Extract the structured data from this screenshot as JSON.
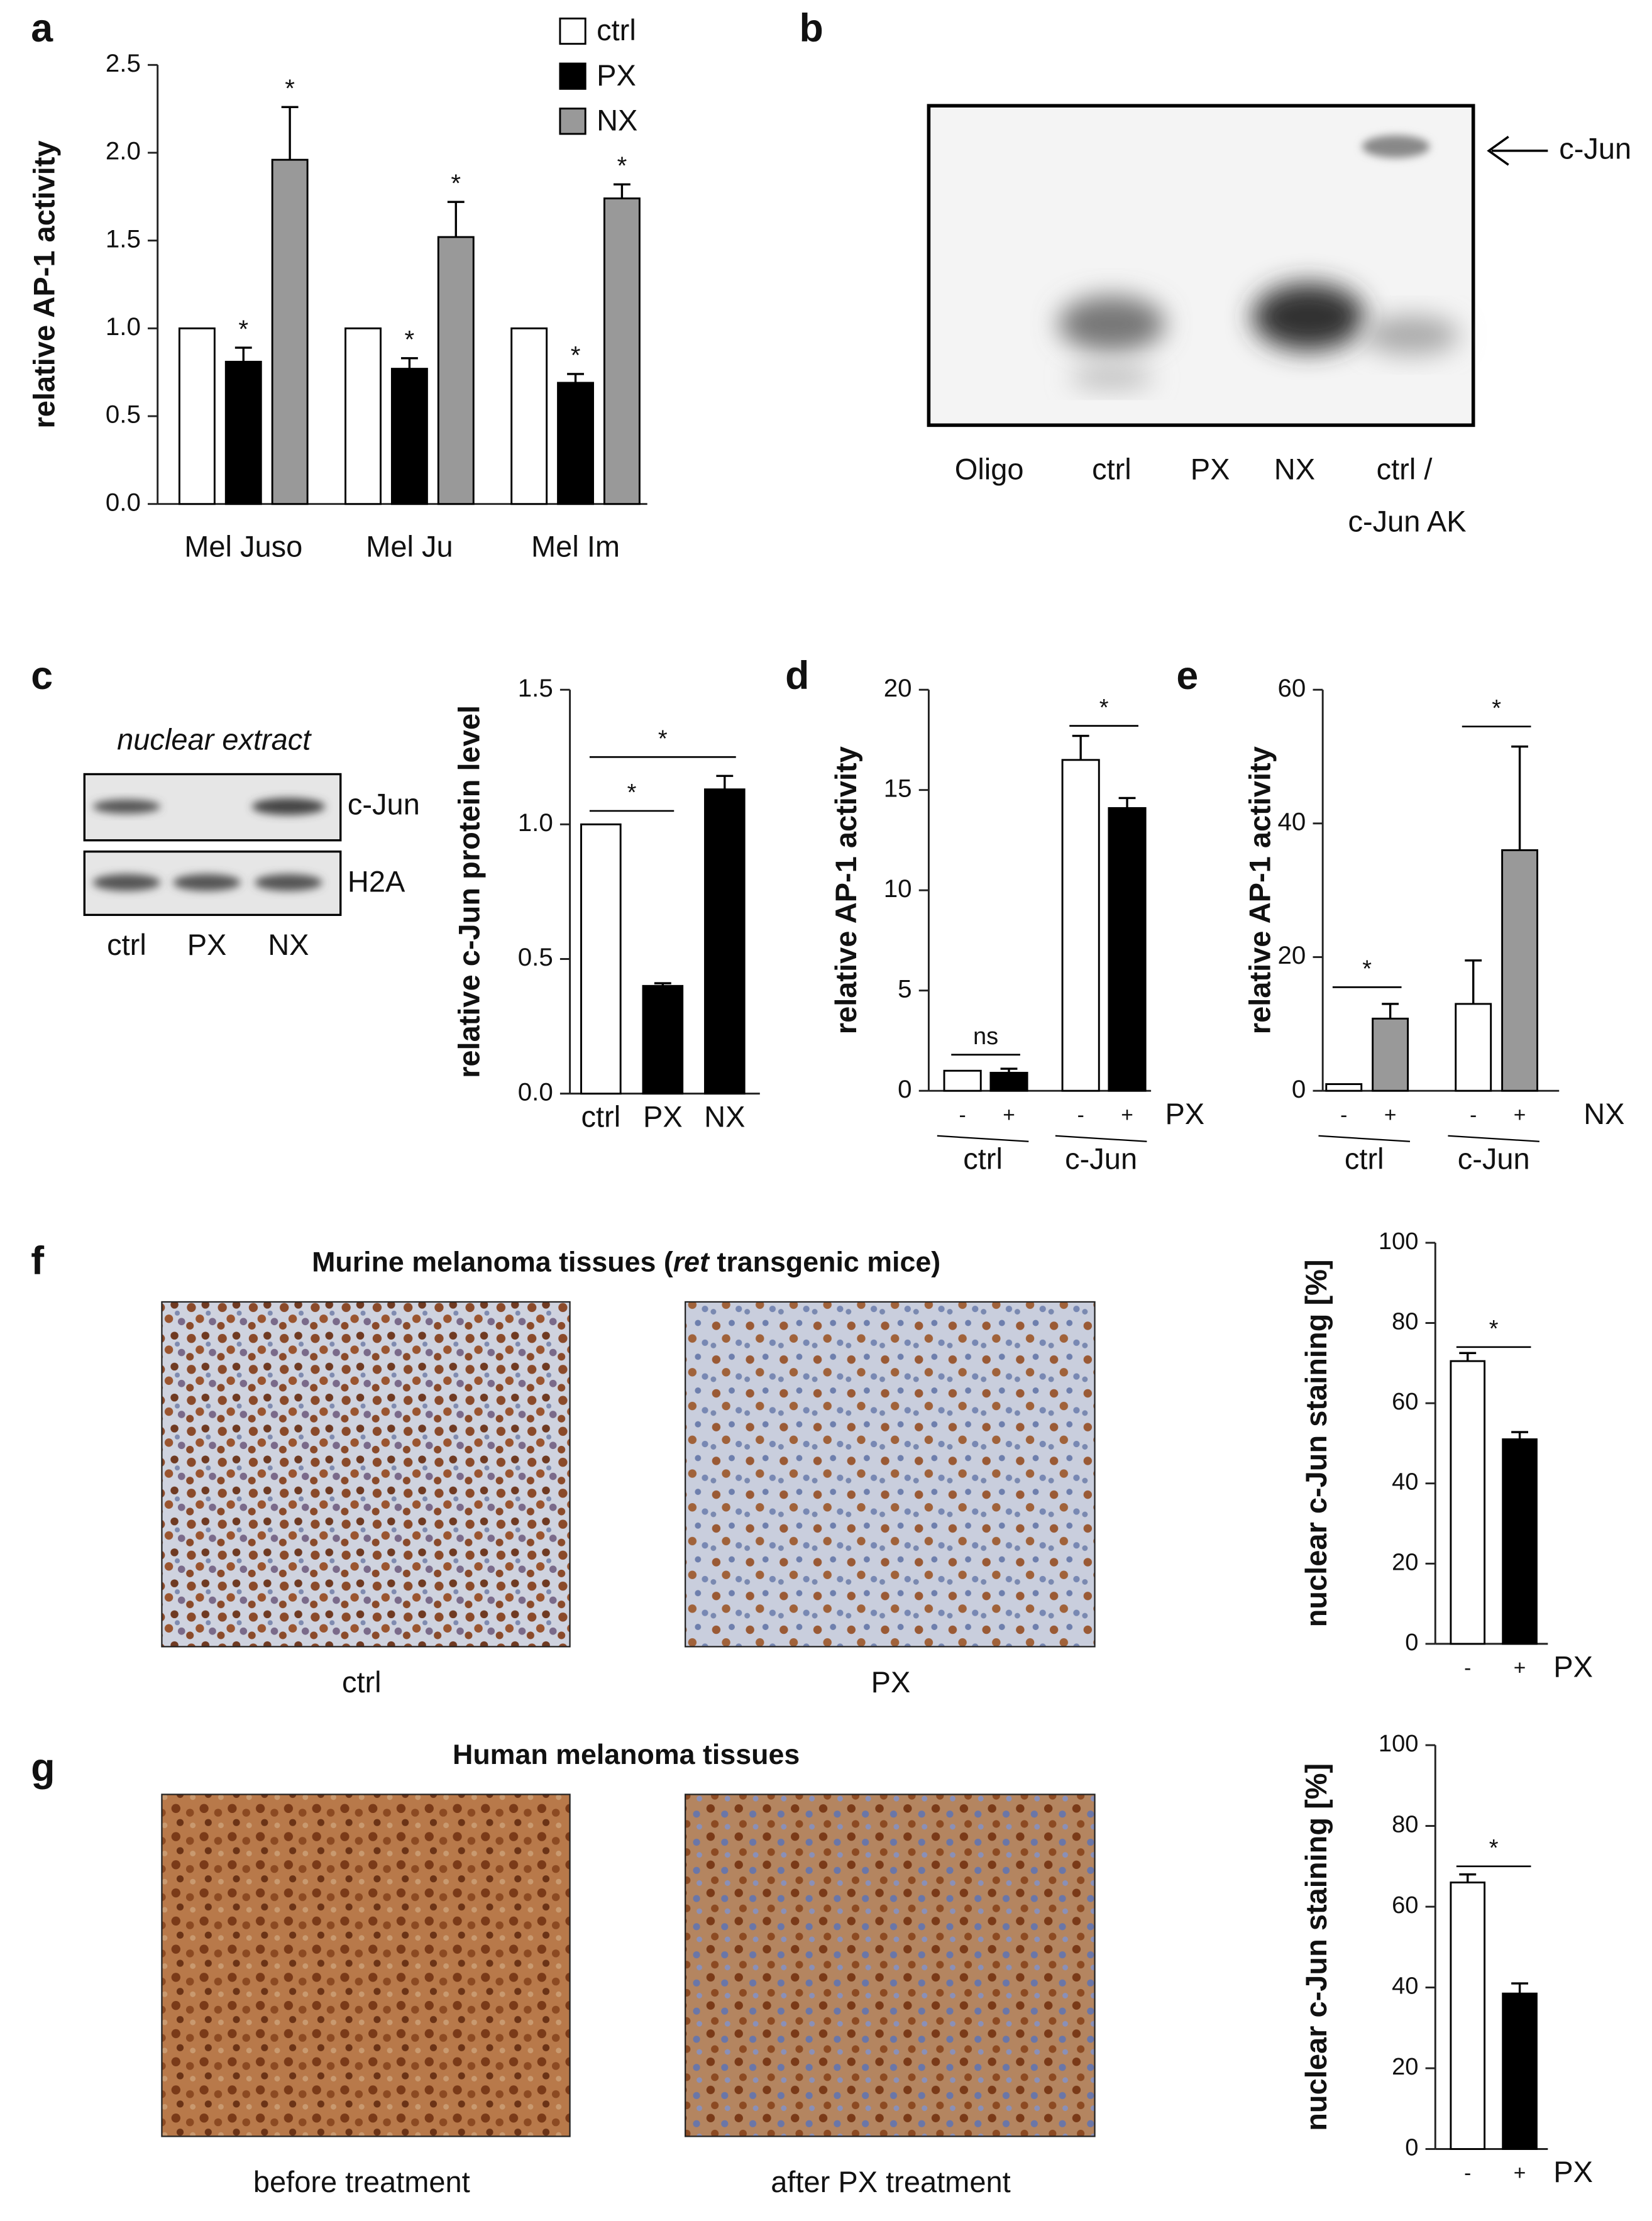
{
  "panel_labels": [
    "a",
    "b",
    "c",
    "d",
    "e",
    "f",
    "g"
  ],
  "gel_b": {
    "lanes": [
      "Oligo",
      "ctrl",
      "PX",
      "NX",
      "ctrl /"
    ],
    "lane_sublabel": "c-Jun AK",
    "band_label": "c-Jun"
  },
  "blot_c": {
    "header": "nuclear extract",
    "rows": [
      "c-Jun",
      "H2A"
    ],
    "lanes": [
      "ctrl",
      "PX",
      "NX"
    ]
  },
  "micrographs": {
    "f": {
      "title_parts": [
        "Murine melanoma tissues (",
        "ret",
        " transgenic mice)"
      ],
      "labels": [
        "ctrl",
        "PX"
      ]
    },
    "g": {
      "title": "Human melanoma tissues",
      "labels": [
        "before treatment",
        "after PX treatment"
      ]
    }
  },
  "chart_data": [
    {
      "type": "bar",
      "ylabel": "relative AP-1 activity",
      "categories": [
        "Mel Juso",
        "Mel Ju",
        "Mel Im"
      ],
      "series": [
        {
          "name": "ctrl",
          "color": "#ffffff",
          "values": [
            1,
            1,
            1
          ]
        },
        {
          "name": "PX",
          "color": "#000000",
          "values": [
            0.81,
            0.77,
            0.69
          ],
          "errors": [
            0.08,
            0.06,
            0.05
          ],
          "sig": [
            "*",
            "*",
            "*"
          ]
        },
        {
          "name": "NX",
          "color": "#999999",
          "values": [
            1.96,
            1.52,
            1.74
          ],
          "errors": [
            0.3,
            0.2,
            0.08
          ],
          "sig": [
            "*",
            "*",
            "*"
          ]
        }
      ],
      "ylim": [
        0,
        2.5
      ],
      "yticks": [
        {
          "value": 0,
          "label": "0.0"
        },
        0.5,
        {
          "value": 1,
          "label": "1.0"
        },
        1.5,
        {
          "value": 2,
          "label": "2.0"
        },
        2.5
      ],
      "legend": "top"
    },
    {
      "type": "bar",
      "ylabel": "relative c-Jun protein level",
      "categories": [
        "ctrl",
        "PX",
        "NX"
      ],
      "values": [
        1,
        0.4,
        1.13
      ],
      "errors": [
        null,
        0.01,
        0.05
      ],
      "colors": [
        "#ffffff",
        "#000000",
        "#000000"
      ],
      "ylim": [
        0,
        1.5
      ],
      "yticks": [
        {
          "value": 0,
          "label": "0.0"
        },
        0.5,
        {
          "value": 1,
          "label": "1.0"
        },
        1.5
      ],
      "brackets": [
        "*",
        "*"
      ]
    },
    {
      "type": "bar",
      "ylabel": "relative AP-1 activity",
      "categories": [
        "-",
        "+",
        "-",
        "+"
      ],
      "groups": [
        "ctrl",
        "c-Jun"
      ],
      "factor": "PX",
      "values": [
        1,
        0.9,
        16.5,
        14.1
      ],
      "errors": [
        null,
        0.2,
        1.2,
        0.5
      ],
      "colors": [
        "#ffffff",
        "#000000",
        "#ffffff",
        "#000000"
      ],
      "ylim": [
        0,
        20
      ],
      "yticks": [
        0,
        5,
        10,
        15,
        20
      ],
      "brackets": [
        "ns",
        "*"
      ]
    },
    {
      "type": "bar",
      "ylabel": "relative AP-1 activity",
      "categories": [
        "-",
        "+",
        "-",
        "+"
      ],
      "groups": [
        "ctrl",
        "c-Jun"
      ],
      "factor": "NX",
      "values": [
        1,
        10.8,
        13,
        36
      ],
      "errors": [
        null,
        2.2,
        6.5,
        15.5
      ],
      "colors": [
        "#ffffff",
        "#999999",
        "#ffffff",
        "#999999"
      ],
      "ylim": [
        0,
        60
      ],
      "yticks": [
        0,
        20,
        40,
        60
      ],
      "brackets": [
        "*",
        "*"
      ]
    },
    {
      "type": "bar",
      "ylabel": "nuclear c-Jun staining [%]",
      "categories": [
        "-",
        "+"
      ],
      "factor": "PX",
      "values": [
        70.5,
        51
      ],
      "errors": [
        2,
        1.8
      ],
      "colors": [
        "#ffffff",
        "#000000"
      ],
      "ylim": [
        0,
        100
      ],
      "yticks": [
        0,
        20,
        40,
        60,
        80,
        100
      ],
      "brackets": [
        "*"
      ]
    },
    {
      "type": "bar",
      "ylabel": "nuclear c-Jun staining [%]",
      "categories": [
        "-",
        "+"
      ],
      "factor": "PX",
      "values": [
        66,
        38.5
      ],
      "errors": [
        2,
        2.5
      ],
      "colors": [
        "#ffffff",
        "#000000"
      ],
      "ylim": [
        0,
        100
      ],
      "yticks": [
        0,
        20,
        40,
        60,
        80,
        100
      ],
      "brackets": [
        "*"
      ]
    }
  ]
}
